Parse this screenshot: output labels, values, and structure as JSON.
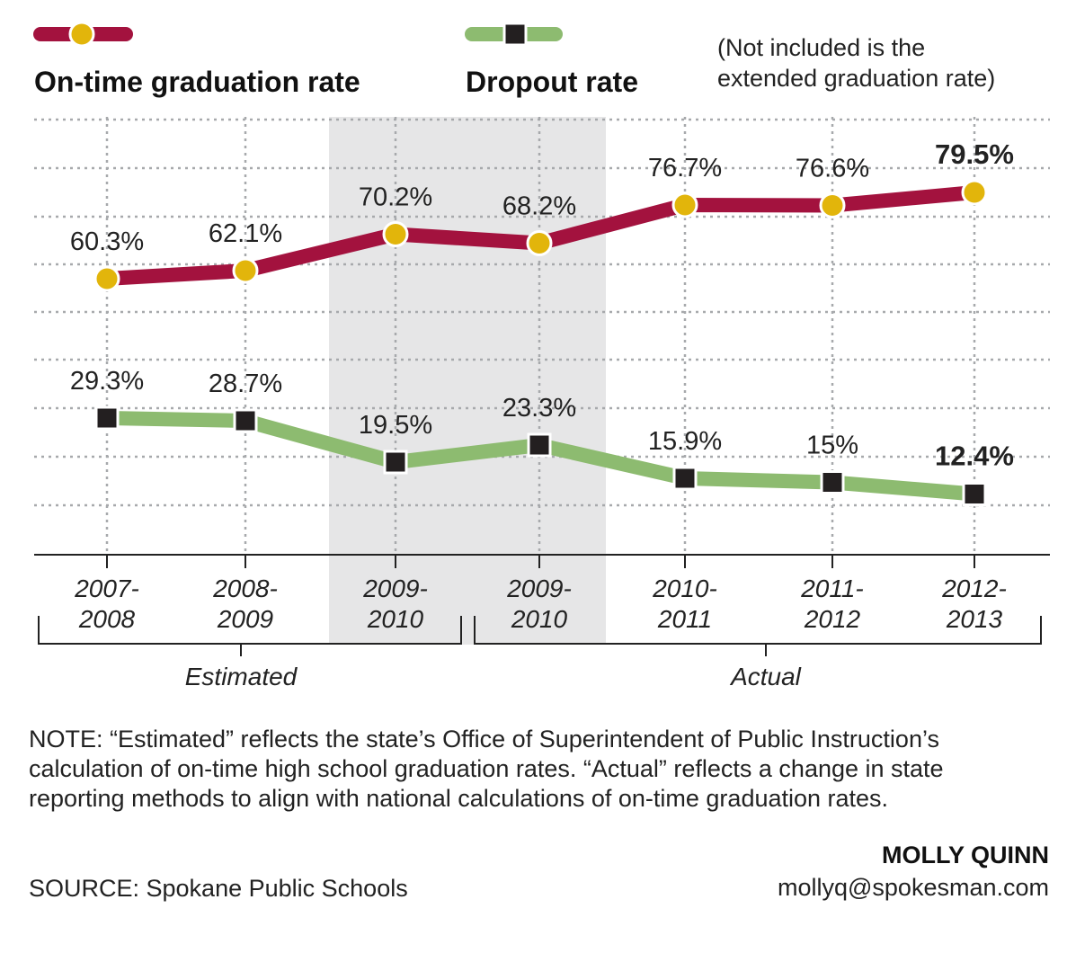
{
  "legend": {
    "grad_label": "On-time graduation rate",
    "dropout_label": "Dropout rate",
    "note_line1": "(Not included is the",
    "note_line2": "extended graduation rate)"
  },
  "chart_data": {
    "type": "line",
    "periods": [
      [
        "2007-",
        "2008"
      ],
      [
        "2008-",
        "2009"
      ],
      [
        "2009-",
        "2010"
      ],
      [
        "2009-",
        "2010"
      ],
      [
        "2010-",
        "2011"
      ],
      [
        "2011-",
        "2012"
      ],
      [
        "2012-",
        "2013"
      ]
    ],
    "series": [
      {
        "name": "On-time graduation rate",
        "values": [
          60.3,
          62.1,
          70.2,
          68.2,
          76.7,
          76.6,
          79.5
        ],
        "labels": [
          "60.3%",
          "62.1%",
          "70.2%",
          "68.2%",
          "76.7%",
          "76.6%",
          "79.5%"
        ],
        "line_color": "#a3123e",
        "marker_color": "#e2b50b",
        "marker": "circle"
      },
      {
        "name": "Dropout rate",
        "values": [
          29.3,
          28.7,
          19.5,
          23.3,
          15.9,
          15,
          12.4
        ],
        "labels": [
          "29.3%",
          "28.7%",
          "19.5%",
          "23.3%",
          "15.9%",
          "15%",
          "12.4%"
        ],
        "line_color": "#8dbb70",
        "marker_color": "#231f20",
        "marker": "square"
      }
    ],
    "groups": [
      {
        "label": "Estimated",
        "from": 0,
        "to": 2
      },
      {
        "label": "Actual",
        "from": 3,
        "to": 6
      }
    ],
    "grid": true,
    "highlight_band": {
      "from": 2,
      "to": 3,
      "color": "#e6e6e7"
    }
  },
  "footer": {
    "note": "NOTE: “Estimated” reflects the state’s Office of Superintendent of Public Instruction’s calculation of on-time high school graduation rates. “Actual” reflects a change in state reporting methods to align with national calculations of on-time graduation rates.",
    "source": "SOURCE: Spokane Public Schools",
    "credit_name": "MOLLY QUINN",
    "credit_email": "mollyq@spokesman.com"
  }
}
